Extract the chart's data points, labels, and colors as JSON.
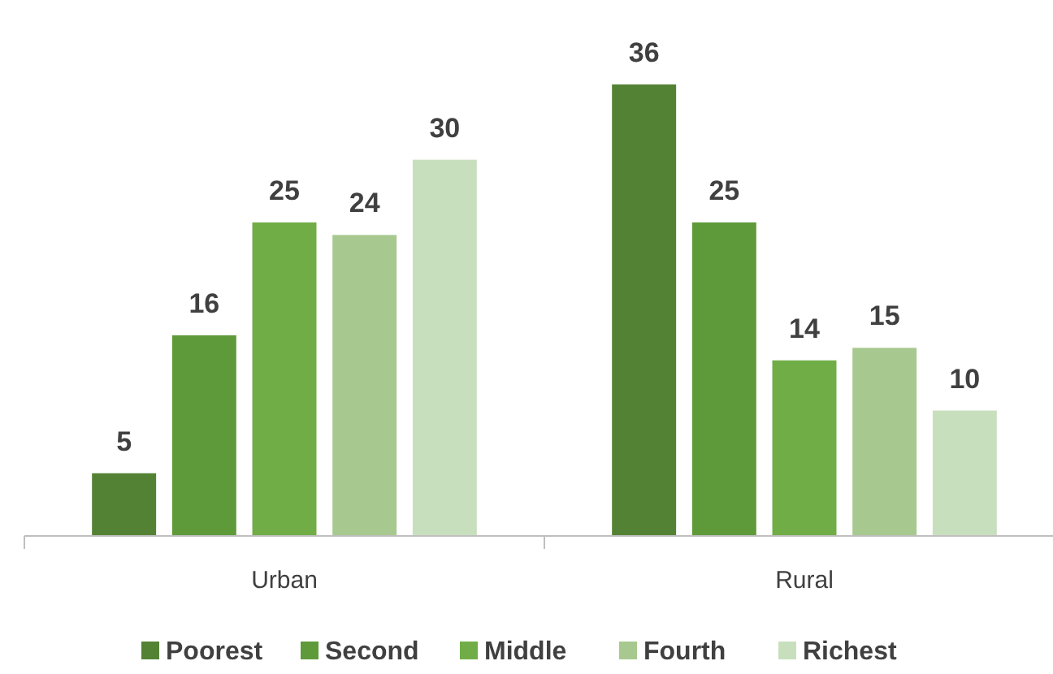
{
  "chart_data": {
    "type": "bar",
    "categories": [
      "Urban",
      "Rural"
    ],
    "series": [
      {
        "name": "Poorest",
        "color": "#548235",
        "values": [
          5,
          36
        ]
      },
      {
        "name": "Second",
        "color": "#5e9a3a",
        "values": [
          16,
          25
        ]
      },
      {
        "name": "Middle",
        "color": "#70ad47",
        "values": [
          25,
          14
        ]
      },
      {
        "name": "Fourth",
        "color": "#a7c98f",
        "values": [
          24,
          15
        ]
      },
      {
        "name": "Richest",
        "color": "#c8dfbd",
        "values": [
          30,
          10
        ]
      }
    ],
    "data_labels": true,
    "legend": "bottom"
  }
}
